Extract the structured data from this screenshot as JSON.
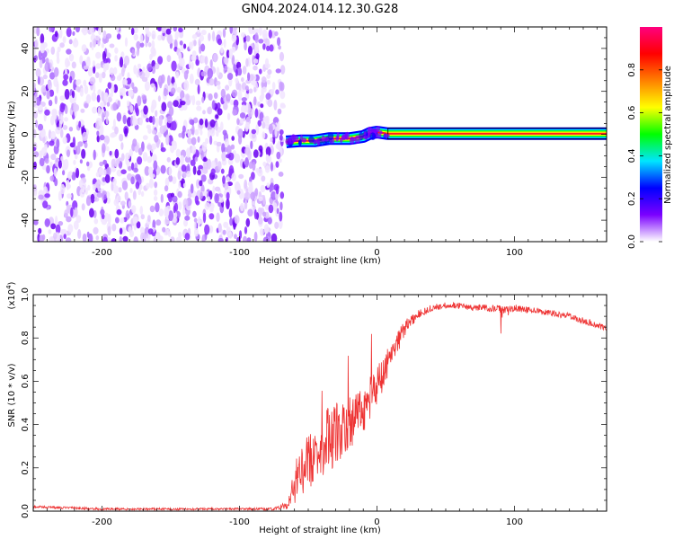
{
  "figure": {
    "title": "GN04.2024.014.12.30.G28"
  },
  "colorbar": {
    "label": "Normalized spectral amplitude",
    "ticks": [
      0.0,
      0.2,
      0.4,
      0.6,
      0.8
    ],
    "tick_labels": [
      "0.0",
      "0.2",
      "0.4",
      "0.6",
      "0.8"
    ],
    "range": [
      0.0,
      1.0
    ],
    "colors": [
      "#ffffff",
      "#7b00ff",
      "#0000ff",
      "#00e5ff",
      "#00ff00",
      "#ffff00",
      "#ff8000",
      "#ff0000",
      "#ff007f"
    ]
  },
  "chart_data": [
    {
      "type": "heatmap",
      "name": "spectrogram",
      "xlabel": "Height of straight line (km)",
      "ylabel": "Frequency (Hz)",
      "xlim": [
        -250,
        167
      ],
      "ylim": [
        -50,
        50
      ],
      "xticks": [
        -200,
        -100,
        0,
        100
      ],
      "xtick_labels": [
        "-200",
        "-100",
        "0",
        "100"
      ],
      "yticks": [
        -40,
        -20,
        0,
        20,
        40
      ],
      "ytick_labels": [
        "-40",
        "-20",
        "0",
        "20",
        "40"
      ],
      "noise_region_x": [
        -250,
        -68
      ],
      "signal_track": [
        {
          "x": -66,
          "y": -3.5
        },
        {
          "x": -55,
          "y": -3.0
        },
        {
          "x": -45,
          "y": -3.0
        },
        {
          "x": -35,
          "y": -2.0
        },
        {
          "x": -20,
          "y": -2.0
        },
        {
          "x": -10,
          "y": -1.0
        },
        {
          "x": -5,
          "y": 0.5
        },
        {
          "x": 0,
          "y": 1.0
        },
        {
          "x": 8,
          "y": 0.3
        },
        {
          "x": 167,
          "y": 0.3
        }
      ],
      "signal_color": "#ff2020"
    },
    {
      "type": "line",
      "name": "snr",
      "xlabel": "Height of straight line (km)",
      "ylabel": "SNR (10 * v/v)",
      "yscale_label": "(x10",
      "yscale_exponent": "4",
      "yscale_suffix": ")",
      "xlim": [
        -250,
        167
      ],
      "ylim": [
        0.0,
        1.0
      ],
      "xticks": [
        -200,
        -100,
        0,
        100
      ],
      "xtick_labels": [
        "-200",
        "-100",
        "0",
        "100"
      ],
      "yticks": [
        0.0,
        0.2,
        0.4,
        0.6,
        0.8,
        1.0
      ],
      "ytick_labels": [
        "0.0",
        "0.2",
        "0.4",
        "0.6",
        "0.8",
        "1.0"
      ],
      "color": "#ee3333",
      "x": [
        -250,
        -200,
        -150,
        -100,
        -75,
        -65,
        -60,
        -55,
        -50,
        -45,
        -40,
        -35,
        -30,
        -25,
        -20,
        -15,
        -10,
        -5,
        0,
        5,
        10,
        15,
        20,
        25,
        30,
        40,
        50,
        60,
        70,
        80,
        90,
        100,
        110,
        120,
        130,
        140,
        150,
        160,
        167
      ],
      "y": [
        0.02,
        0.01,
        0.01,
        0.01,
        0.01,
        0.03,
        0.12,
        0.2,
        0.22,
        0.28,
        0.3,
        0.33,
        0.35,
        0.4,
        0.42,
        0.44,
        0.47,
        0.52,
        0.58,
        0.65,
        0.72,
        0.78,
        0.84,
        0.88,
        0.91,
        0.94,
        0.95,
        0.95,
        0.94,
        0.94,
        0.93,
        0.94,
        0.93,
        0.92,
        0.91,
        0.9,
        0.88,
        0.86,
        0.84
      ],
      "noise_amplitude": [
        0.006,
        0.005,
        0.005,
        0.005,
        0.006,
        0.02,
        0.1,
        0.12,
        0.13,
        0.14,
        0.15,
        0.15,
        0.15,
        0.14,
        0.13,
        0.12,
        0.11,
        0.1,
        0.09,
        0.08,
        0.06,
        0.05,
        0.04,
        0.025,
        0.02,
        0.015,
        0.015,
        0.015,
        0.015,
        0.015,
        0.02,
        0.02,
        0.015,
        0.015,
        0.015,
        0.015,
        0.015,
        0.015,
        0.015
      ]
    }
  ]
}
